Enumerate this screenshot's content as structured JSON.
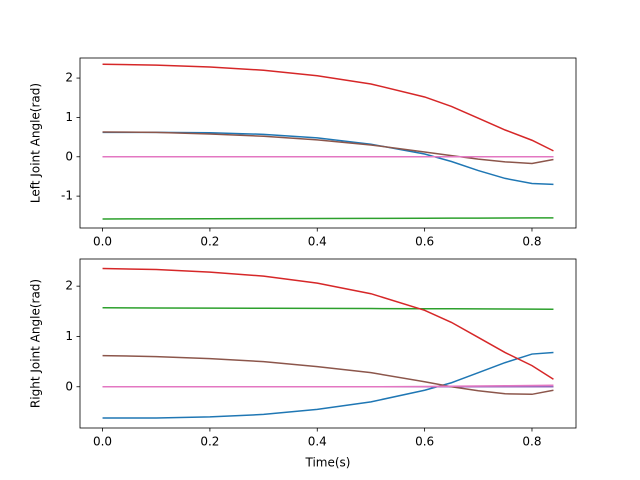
{
  "chart_data": [
    {
      "type": "line",
      "ylabel": "Left Joint Angle(rad)",
      "x": [
        0,
        0.1,
        0.2,
        0.3,
        0.4,
        0.5,
        0.6,
        0.65,
        0.7,
        0.75,
        0.8,
        0.84
      ],
      "xlim": [
        -0.042,
        0.882
      ],
      "xticks": [
        {
          "value": 0,
          "label": "0.0"
        },
        0.2,
        0.4,
        0.6,
        0.8
      ],
      "ylim": [
        -1.81,
        2.51
      ],
      "yticks": [
        -1,
        0,
        1,
        2
      ],
      "series": [
        {
          "color": "#1f77b4",
          "values": [
            0.62,
            0.62,
            0.61,
            0.57,
            0.48,
            0.32,
            0.07,
            -0.12,
            -0.35,
            -0.55,
            -0.68,
            -0.7
          ]
        },
        {
          "color": "#ff7f0e",
          "values": [
            0,
            0,
            0,
            0,
            0,
            0,
            0,
            0,
            0,
            0,
            0,
            0
          ]
        },
        {
          "color": "#2ca02c",
          "values": [
            -1.58,
            -1.577,
            -1.574,
            -1.571,
            -1.568,
            -1.565,
            -1.562,
            -1.56,
            -1.558,
            -1.556,
            -1.554,
            -1.553
          ]
        },
        {
          "color": "#d62728",
          "values": [
            2.35,
            2.33,
            2.28,
            2.2,
            2.06,
            1.85,
            1.52,
            1.28,
            0.98,
            0.68,
            0.42,
            0.15
          ]
        },
        {
          "color": "#9467bd",
          "values": [
            0,
            0,
            0,
            0,
            0,
            0,
            0,
            0,
            0,
            0,
            0,
            0
          ]
        },
        {
          "color": "#8c564b",
          "values": [
            0.63,
            0.62,
            0.58,
            0.52,
            0.43,
            0.3,
            0.12,
            0.03,
            -0.06,
            -0.13,
            -0.17,
            -0.07
          ]
        },
        {
          "color": "#e377c2",
          "values": [
            0,
            0,
            0,
            0,
            0,
            0,
            0,
            0,
            0,
            0,
            0,
            0
          ]
        }
      ]
    },
    {
      "type": "line",
      "ylabel": "Right Joint Angle(rad)",
      "xlabel": "Time(s)",
      "x": [
        0,
        0.1,
        0.2,
        0.3,
        0.4,
        0.5,
        0.6,
        0.65,
        0.7,
        0.75,
        0.8,
        0.84
      ],
      "xlim": [
        -0.042,
        0.882
      ],
      "xticks": [
        {
          "value": 0,
          "label": "0.0"
        },
        0.2,
        0.4,
        0.6,
        0.8
      ],
      "ylim": [
        -0.82,
        2.54
      ],
      "yticks": [
        0,
        1,
        2
      ],
      "series": [
        {
          "color": "#1f77b4",
          "values": [
            -0.62,
            -0.62,
            -0.6,
            -0.55,
            -0.45,
            -0.3,
            -0.07,
            0.08,
            0.28,
            0.48,
            0.65,
            0.68
          ]
        },
        {
          "color": "#ff7f0e",
          "values": [
            0,
            0,
            0,
            0,
            0,
            0,
            0,
            0,
            0,
            0,
            0,
            0
          ]
        },
        {
          "color": "#2ca02c",
          "values": [
            1.57,
            1.567,
            1.564,
            1.561,
            1.558,
            1.555,
            1.552,
            1.55,
            1.548,
            1.546,
            1.544,
            1.542
          ]
        },
        {
          "color": "#d62728",
          "values": [
            2.35,
            2.33,
            2.28,
            2.2,
            2.06,
            1.85,
            1.52,
            1.28,
            0.98,
            0.68,
            0.42,
            0.15
          ]
        },
        {
          "color": "#9467bd",
          "values": [
            0,
            0,
            0,
            0,
            0,
            0,
            0,
            0,
            0,
            0,
            0,
            0
          ]
        },
        {
          "color": "#8c564b",
          "values": [
            0.62,
            0.6,
            0.56,
            0.5,
            0.4,
            0.28,
            0.1,
            0,
            -0.08,
            -0.14,
            -0.15,
            -0.07
          ]
        },
        {
          "color": "#e377c2",
          "values": [
            0,
            0,
            0,
            0,
            0,
            0,
            0.005,
            0.01,
            0.015,
            0.02,
            0.025,
            0.03
          ]
        }
      ]
    }
  ]
}
